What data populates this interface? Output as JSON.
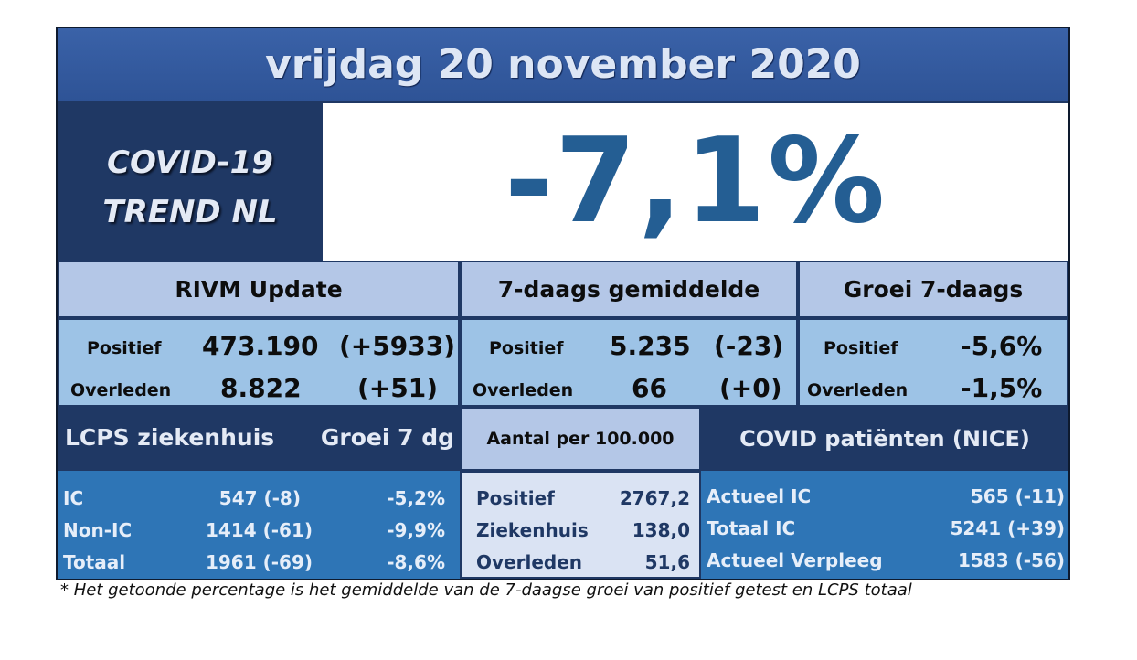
{
  "header": {
    "date": "vrijdag 20 november 2020"
  },
  "brand": {
    "line1": "COVID-19",
    "line2": "TREND NL"
  },
  "headline_value": "-7,1%",
  "rivm": {
    "title": "RIVM Update",
    "rows": [
      {
        "label": "Positief",
        "value": "473.190",
        "delta": "(+5933)"
      },
      {
        "label": "Overleden",
        "value": "8.822",
        "delta": "(+51)"
      }
    ]
  },
  "avg7": {
    "title": "7-daags gemiddelde",
    "rows": [
      {
        "label": "Positief",
        "value": "5.235",
        "delta": "(-23)"
      },
      {
        "label": "Overleden",
        "value": "66",
        "delta": "(+0)"
      }
    ]
  },
  "growth7": {
    "title": "Groei 7-daags",
    "rows": [
      {
        "label": "Positief",
        "value": "-5,6%"
      },
      {
        "label": "Overleden",
        "value": "-1,5%"
      }
    ]
  },
  "lcps": {
    "title": "LCPS ziekenhuis",
    "growth_title": "Groei 7 dg",
    "rows": [
      {
        "label": "IC",
        "value": "547 (-8)",
        "growth": "-5,2%"
      },
      {
        "label": "Non-IC",
        "value": "1414 (-61)",
        "growth": "-9,9%"
      },
      {
        "label": "Totaal",
        "value": "1961 (-69)",
        "growth": "-8,6%"
      }
    ]
  },
  "per100k": {
    "title": "Aantal per 100.000",
    "rows": [
      {
        "label": "Positief",
        "value": "2767,2"
      },
      {
        "label": "Ziekenhuis",
        "value": "138,0"
      },
      {
        "label": "Overleden",
        "value": "51,6"
      }
    ]
  },
  "nice": {
    "title": "COVID patiënten (NICE)",
    "rows": [
      {
        "label": "Actueel IC",
        "value": "565 (-11)"
      },
      {
        "label": "Totaal IC",
        "value": "5241 (+39)"
      },
      {
        "label": "Actueel Verpleeg",
        "value": "1583 (-56)"
      }
    ]
  },
  "footnote": "* Het getoonde percentage is het gemiddelde van de 7-daagse groei van positief getest en LCPS totaal",
  "colors": {
    "dark_navy": "#1f3864",
    "date_band": "#2e5396",
    "headline": "#245e93",
    "light_header": "#b4c7e7",
    "light_data": "#9dc3e6",
    "mid_blue": "#2e75b6",
    "pale": "#dae3f3"
  }
}
